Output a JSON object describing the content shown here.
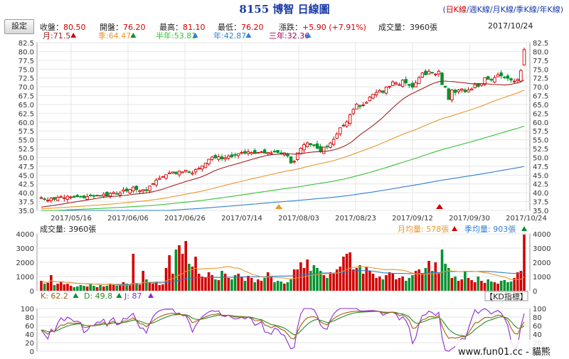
{
  "header": {
    "title": "8155 博智  日線圖",
    "ktypes": [
      "日K線",
      "週K線",
      "月K線",
      "季K線",
      "年K線"
    ],
    "ktype_active": 0,
    "settings_label": "設定",
    "quote": {
      "close_label": "收盤：",
      "close": "80.50",
      "open_label": "開盤：",
      "open": "76.20",
      "high_label": "最高：",
      "high": "81.10",
      "low_label": "最低：",
      "low": "76.20",
      "change_label": "漲跌：",
      "change": "+5.90 (+7.91%)",
      "volume_label": "成交量：",
      "volume": "3960張",
      "date": "2017/10/24"
    }
  },
  "colors": {
    "up": "#d10000",
    "down": "#00932f",
    "ma_month": "#a52020",
    "ma_quarter": "#e8962b",
    "ma_half": "#35c235",
    "ma_year": "#2f7fd2",
    "ma_3y": "#a00060",
    "k": "#a06010",
    "d": "#2a8a2a",
    "j": "#8a2ad2"
  },
  "chart_data": [
    {
      "type": "candlestick",
      "ylim": [
        35.0,
        82.5
      ],
      "yticks": [
        "35.0",
        "37.5",
        "40.0",
        "42.5",
        "45.0",
        "47.5",
        "50.0",
        "52.5",
        "55.0",
        "57.5",
        "60.0",
        "62.5",
        "65.0",
        "67.5",
        "70.0",
        "72.5",
        "75.0",
        "77.5",
        "80.0",
        "82.5"
      ],
      "xlabels": [
        "2017/05/16",
        "2017/06/06",
        "2017/06/26",
        "2017/07/14",
        "2017/08/03",
        "2017/08/23",
        "2017/09/12",
        "2017/09/30",
        "2017/10/24"
      ],
      "ma_legend": [
        {
          "label": "月:71.5",
          "color": "#a52020",
          "dir": "up"
        },
        {
          "label": "季:64.47",
          "color": "#e8962b",
          "dir": "up"
        },
        {
          "label": "半年:53.81",
          "color": "#35c235",
          "dir": "up"
        },
        {
          "label": "年:42.87",
          "color": "#2f7fd2",
          "dir": "up"
        },
        {
          "label": "三年:32.36",
          "color": "#a00060",
          "dir": "up"
        }
      ],
      "closes": [
        38.6,
        38.2,
        37.9,
        38.5,
        38.1,
        38.7,
        38.9,
        38.6,
        39.0,
        38.8,
        38.7,
        38.9,
        38.8,
        38.6,
        38.9,
        39.1,
        39.0,
        39.3,
        39.2,
        39.6,
        39.1,
        39.8,
        40.1,
        39.6,
        39.9,
        40.8,
        40.5,
        40.9,
        41.6,
        40.9,
        40.6,
        40.9,
        40.6,
        41.9,
        42.6,
        43.6,
        44.1,
        44.6,
        45.1,
        45.6,
        45.9,
        45.4,
        46.1,
        45.9,
        46.4,
        45.9,
        45.6,
        46.6,
        46.9,
        47.6,
        48.4,
        49.5,
        50.1,
        49.9,
        50.2,
        49.6,
        49.9,
        50.4,
        50.2,
        50.6,
        51.1,
        51.4,
        51.2,
        51.6,
        51.4,
        51.1,
        51.4,
        51.6,
        51.2,
        51.4,
        51.3,
        51.6,
        51.4,
        51.2,
        51.3,
        50.4,
        48.4,
        48.9,
        51.3,
        52.6,
        53.6,
        54.1,
        53.6,
        53.4,
        52.6,
        51.6,
        52.9,
        53.1,
        54.1,
        55.1,
        56.6,
        58.4,
        59.1,
        60.1,
        62.1,
        63.6,
        65.1,
        64.4,
        64.9,
        65.6,
        67.1,
        67.9,
        68.4,
        68.9,
        68.4,
        69.9,
        70.1,
        71.4,
        71.1,
        70.6,
        71.9,
        71.1,
        70.4,
        69.9,
        71.1,
        72.6,
        73.9,
        73.4,
        74.4,
        73.9,
        73.6,
        74.4,
        70.6,
        69.9,
        66.4,
        69.1,
        68.4,
        69.1,
        69.4,
        68.6,
        69.1,
        69.4,
        70.6,
        70.1,
        70.9,
        72.6,
        72.1,
        71.9,
        72.6,
        73.4,
        73.1,
        72.6,
        72.4,
        71.9,
        71.6,
        72.1,
        74.6,
        80.5
      ],
      "ma_month_approx_end": 71.5,
      "ma_quarter_approx_end": 64.47,
      "ma_half_approx_end": 53.81,
      "ma_year_approx_end": 42.87
    },
    {
      "type": "bar",
      "name": "成交量",
      "label": "成交量: 3960張",
      "avg_month_label": "月均量: 578張",
      "avg_quarter_label": "季均量: 903張",
      "ylim": [
        0,
        4000
      ],
      "yticks": [
        "0",
        "1000",
        "2000",
        "3000",
        "4000"
      ],
      "values": [
        700,
        500,
        550,
        1100,
        400,
        500,
        650,
        450,
        500,
        350,
        250,
        300,
        400,
        350,
        300,
        450,
        350,
        250,
        400,
        300,
        350,
        500,
        450,
        350,
        400,
        600,
        500,
        450,
        2600,
        550,
        450,
        1400,
        800,
        550,
        500,
        600,
        400,
        450,
        1600,
        2500,
        1200,
        2900,
        3200,
        2600,
        3500,
        1900,
        1700,
        2400,
        1200,
        1000,
        900,
        1300,
        1100,
        800,
        750,
        1400,
        1200,
        900,
        800,
        1100,
        1200,
        1000,
        700,
        1050,
        900,
        600,
        800,
        700,
        900,
        1300,
        1000,
        600,
        700,
        650,
        500,
        600,
        800,
        1500,
        1500,
        2000,
        1600,
        2200,
        1400,
        1800,
        1600,
        1400,
        1100,
        900,
        1300,
        1200,
        1500,
        1700,
        2400,
        2600,
        2700,
        1500,
        1600,
        1800,
        1200,
        1700,
        1400,
        1200,
        900,
        1000,
        800,
        1100,
        1300,
        1200,
        800,
        900,
        1000,
        700,
        900,
        1100,
        1400,
        1500,
        1200,
        1600,
        2100,
        1400,
        2000,
        1300,
        2900,
        1900,
        1600,
        900,
        1000,
        700,
        800,
        1400,
        900,
        750,
        600,
        1000,
        700,
        550,
        800,
        650,
        600,
        500,
        700,
        750,
        600,
        650,
        900,
        1300,
        1400,
        3960
      ],
      "colors_up": "#d10000",
      "colors_down": "#00932f"
    },
    {
      "type": "line",
      "name": "KD",
      "indicator_label": "KD指標",
      "legend": [
        {
          "label": "K: 62.2",
          "color": "#a06010",
          "dir": "up"
        },
        {
          "label": "D: 49.8",
          "color": "#2a8a2a",
          "dir": "up"
        },
        {
          "label": "J: 87",
          "color": "#8a2ad2",
          "dir": "up"
        }
      ],
      "ylim": [
        0,
        100
      ],
      "yticks": [
        "0",
        "20",
        "40",
        "60",
        "80",
        "100"
      ]
    }
  ],
  "watermark": "www.fun01.cc - 貓熊"
}
